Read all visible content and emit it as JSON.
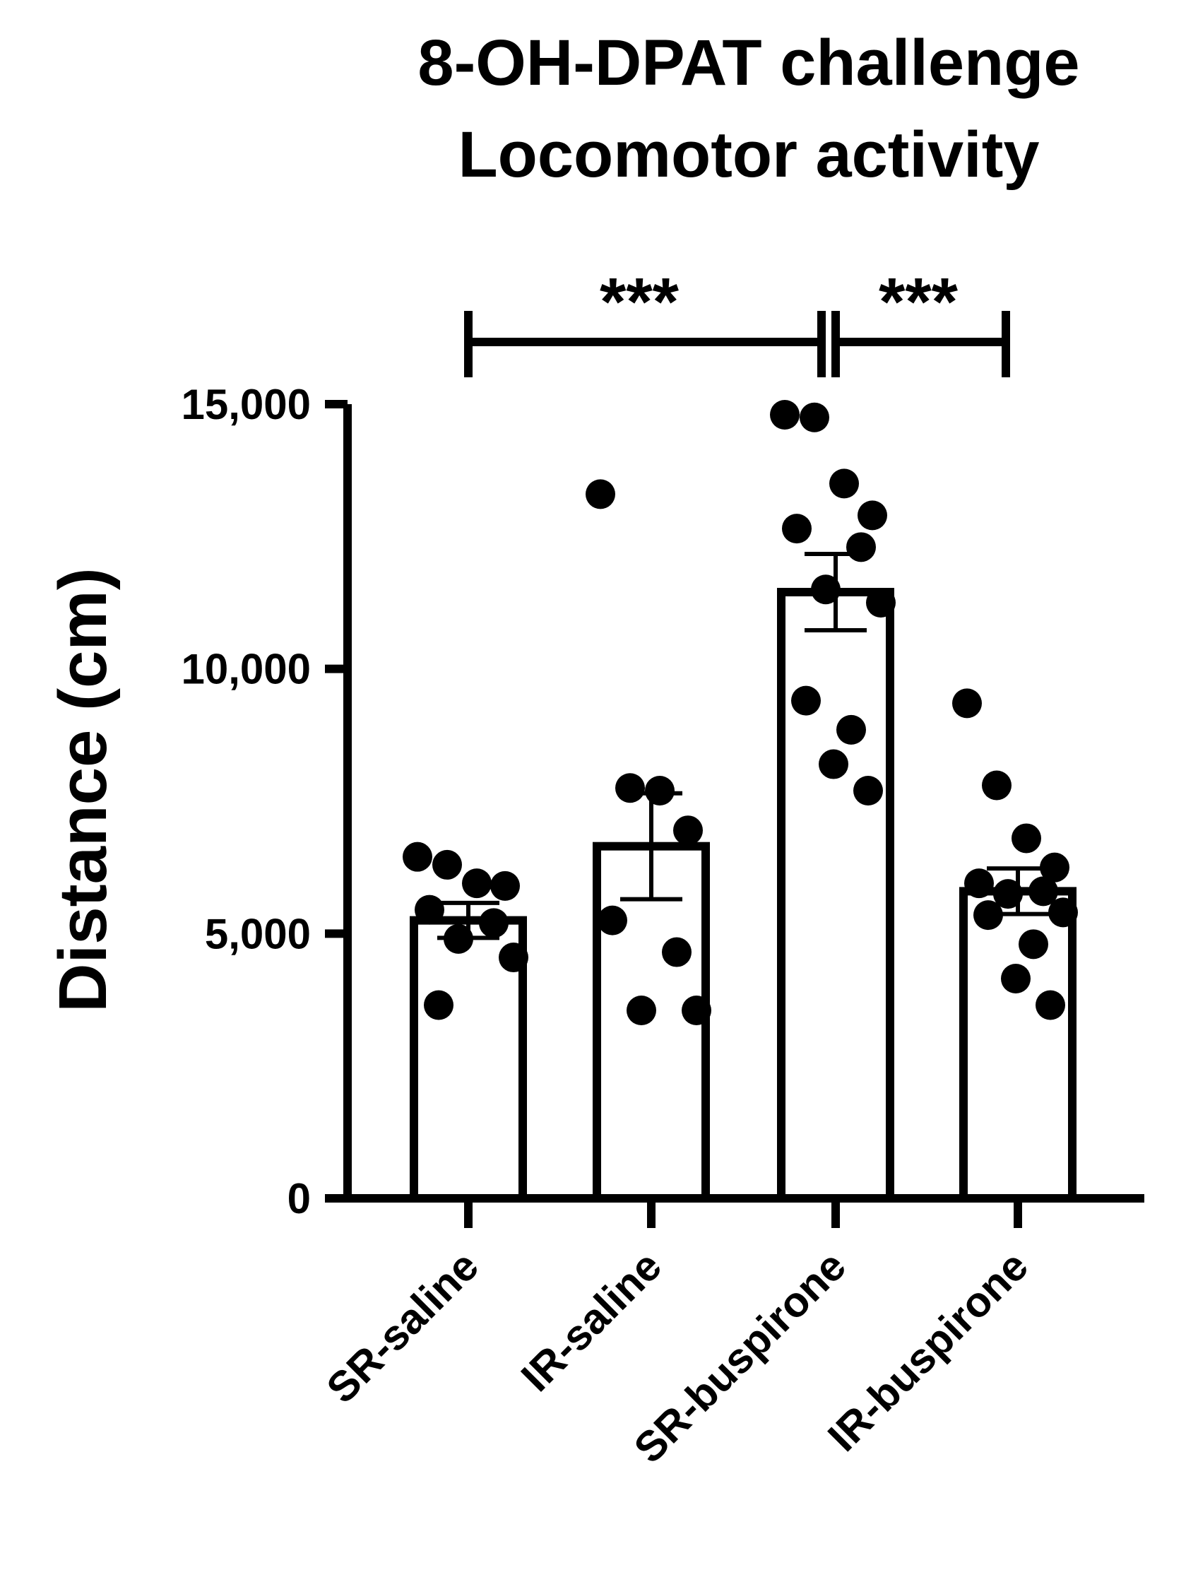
{
  "chart_data": {
    "type": "bar",
    "title": "8-OH-DPAT challenge",
    "subtitle": "Locomotor activity",
    "xlabel": "",
    "ylabel": "Distance (cm)",
    "ylim": [
      0,
      15000
    ],
    "yticks": [
      0,
      5000,
      10000,
      15000
    ],
    "ytick_labels": [
      "0",
      "5,000",
      "10,000",
      "15,000"
    ],
    "grid": false,
    "legend": "none",
    "categories": [
      "SR-saline",
      "IR-saline",
      "SR-buspirone",
      "IR-buspirone"
    ],
    "values": [
      5250,
      6650,
      11450,
      5800
    ],
    "sem": [
      330,
      1000,
      720,
      430
    ],
    "points": [
      [
        6450,
        6300,
        5950,
        5900,
        5450,
        5200,
        4900,
        4550,
        3650
      ],
      [
        13300,
        7750,
        7700,
        6950,
        5250,
        4650,
        3550,
        3550
      ],
      [
        14800,
        14750,
        13500,
        12900,
        12650,
        12300,
        11500,
        11250,
        9400,
        8850,
        8200,
        7700
      ],
      [
        9350,
        7800,
        6800,
        6250,
        5950,
        5800,
        5750,
        5400,
        5350,
        4800,
        4150,
        3650
      ]
    ],
    "significance": [
      {
        "from": "SR-saline",
        "to": "SR-buspirone",
        "label": "***"
      },
      {
        "from": "SR-buspirone",
        "to": "IR-buspirone",
        "label": "***"
      }
    ],
    "colors": {
      "bar_fill": "#ffffff",
      "stroke": "#000000",
      "points": "#000000"
    }
  }
}
